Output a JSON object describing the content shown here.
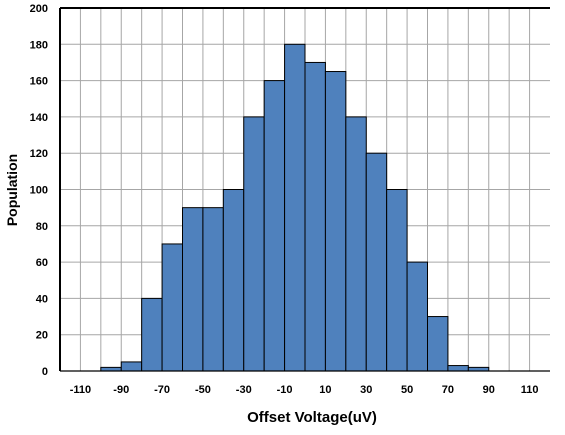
{
  "chart_data": {
    "type": "bar",
    "title": "",
    "xlabel": "Offset Voltage(uV)",
    "ylabel": "Population",
    "x_tick_labels": [
      "-110",
      "-90",
      "-70",
      "-50",
      "-30",
      "-10",
      "10",
      "30",
      "50",
      "70",
      "90",
      "110"
    ],
    "y_tick_labels": [
      "0",
      "20",
      "40",
      "60",
      "80",
      "100",
      "120",
      "140",
      "160",
      "180",
      "200"
    ],
    "bin_width": 10,
    "bin_centers": [
      -115,
      -105,
      -95,
      -85,
      -75,
      -65,
      -55,
      -45,
      -35,
      -25,
      -15,
      -5,
      5,
      15,
      25,
      35,
      45,
      55,
      65,
      75,
      85,
      95,
      105,
      115
    ],
    "values": [
      0,
      0,
      2,
      5,
      40,
      70,
      90,
      90,
      100,
      140,
      160,
      180,
      170,
      165,
      140,
      120,
      100,
      60,
      30,
      3,
      2,
      0,
      0,
      0
    ],
    "xlim": [
      -120,
      120
    ],
    "ylim": [
      0,
      200
    ],
    "grid": true,
    "legend": "none",
    "bar_color": "#4f81bd",
    "bar_edge_color": "#000000"
  }
}
